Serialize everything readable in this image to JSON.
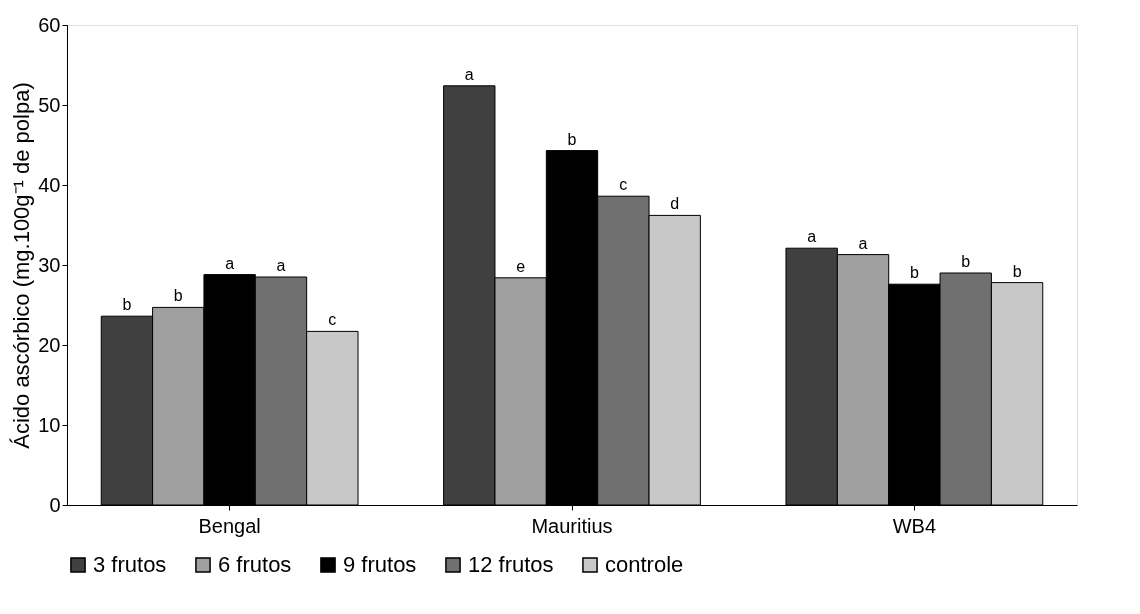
{
  "chart_data": {
    "type": "bar",
    "ylabel": "Ácido ascórbico (mg.100g⁻¹ de polpa)",
    "categories": [
      "Bengal",
      "Mauritius",
      "WB4"
    ],
    "series": [
      {
        "name": "3 frutos",
        "color": "#404040",
        "values": [
          23.6,
          52.4,
          32.1
        ],
        "value_labels": [
          "b",
          "a",
          "a"
        ]
      },
      {
        "name": "6 frutos",
        "color": "#a0a0a0",
        "values": [
          24.7,
          28.4,
          31.3
        ],
        "value_labels": [
          "b",
          "e",
          "a"
        ]
      },
      {
        "name": "9 frutos",
        "color": "#000000",
        "values": [
          28.8,
          44.3,
          27.6
        ],
        "value_labels": [
          "a",
          "b",
          "b"
        ]
      },
      {
        "name": "12 frutos",
        "color": "#707070",
        "values": [
          28.5,
          38.6,
          29.0
        ],
        "value_labels": [
          "a",
          "c",
          "b"
        ]
      },
      {
        "name": "controle",
        "color": "#c8c8c8",
        "values": [
          21.7,
          36.2,
          27.8
        ],
        "value_labels": [
          "c",
          "d",
          "b"
        ]
      }
    ],
    "ylim": [
      0,
      60
    ],
    "yticks": [
      0,
      10,
      20,
      30,
      40,
      50,
      60
    ],
    "grid": false,
    "legend": "bottom"
  }
}
